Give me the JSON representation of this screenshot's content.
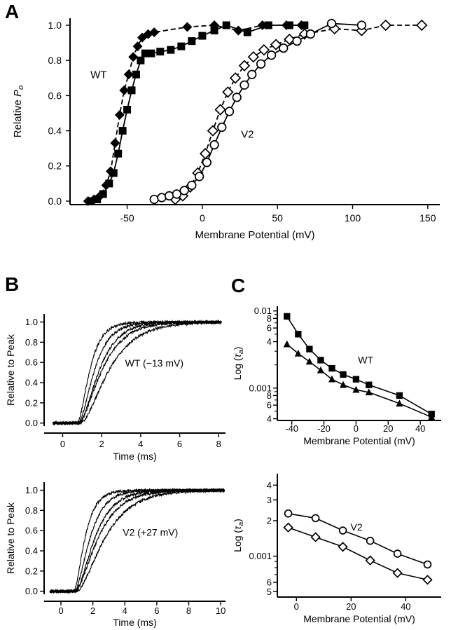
{
  "figure": {
    "background": "#ffffff",
    "ink": "#000000",
    "panels": [
      {
        "label": "A"
      },
      {
        "label": "B"
      },
      {
        "label": "C"
      }
    ]
  },
  "chart_data": [
    {
      "id": "A",
      "type": "scatter",
      "xlabel": "Membrane Potential (mV)",
      "ylabel_runs": [
        {
          "t": "Relative "
        },
        {
          "t": "P",
          "italic": true
        },
        {
          "t": "o",
          "italic": true,
          "sub": true
        }
      ],
      "xlim": [
        -88,
        158
      ],
      "ylim": [
        -0.02,
        1.04
      ],
      "yscale": "linear",
      "grid": false,
      "xticks": [
        {
          "v": -50,
          "label": "-50"
        },
        {
          "v": 0,
          "label": "0"
        },
        {
          "v": 50,
          "label": "50"
        },
        {
          "v": 100,
          "label": "100"
        },
        {
          "v": 150,
          "label": "150"
        }
      ],
      "yticks": [
        {
          "v": 0,
          "label": "0.0"
        },
        {
          "v": 0.2,
          "label": "0.2"
        },
        {
          "v": 0.4,
          "label": "0.4"
        },
        {
          "v": 0.6,
          "label": "0.6"
        },
        {
          "v": 0.8,
          "label": "0.8"
        },
        {
          "v": 1,
          "label": "1.0"
        }
      ],
      "annotations": [
        {
          "text": "WT",
          "x": -69,
          "y": 0.7
        },
        {
          "text": "V2",
          "x": 30,
          "y": 0.36
        }
      ],
      "series": [
        {
          "name": "WT filled diamonds",
          "marker": "filled-diamond",
          "line": "dashed",
          "points": [
            [
              -76,
              0.0
            ],
            [
              -72,
              0.01
            ],
            [
              -68,
              0.03
            ],
            [
              -64,
              0.09
            ],
            [
              -61,
              0.17
            ],
            [
              -58,
              0.33
            ],
            [
              -55,
              0.49
            ],
            [
              -52,
              0.63
            ],
            [
              -49,
              0.72
            ],
            [
              -46,
              0.82
            ],
            [
              -43,
              0.88
            ],
            [
              -40,
              0.93
            ],
            [
              -36,
              0.95
            ],
            [
              -32,
              0.96
            ],
            [
              -10,
              0.99
            ],
            [
              8,
              1.0
            ],
            [
              24,
              0.97
            ],
            [
              40,
              1.0
            ],
            [
              56,
              1.0
            ],
            [
              66,
              1.0
            ]
          ]
        },
        {
          "name": "WT filled squares",
          "marker": "filled-square",
          "line": "solid",
          "points": [
            [
              -74,
              0.0
            ],
            [
              -70,
              0.01
            ],
            [
              -66,
              0.04
            ],
            [
              -62,
              0.1
            ],
            [
              -59,
              0.16
            ],
            [
              -56,
              0.27
            ],
            [
              -53,
              0.4
            ],
            [
              -50,
              0.52
            ],
            [
              -47,
              0.63
            ],
            [
              -44,
              0.72
            ],
            [
              -41,
              0.8
            ],
            [
              -38,
              0.84
            ],
            [
              -34,
              0.84
            ],
            [
              -28,
              0.85
            ],
            [
              -21,
              0.86
            ],
            [
              -14,
              0.88
            ],
            [
              -7,
              0.91
            ],
            [
              0,
              0.94
            ],
            [
              8,
              0.97
            ],
            [
              16,
              1.0
            ],
            [
              30,
              0.96
            ],
            [
              44,
              1.0
            ],
            [
              58,
              1.0
            ],
            [
              68,
              1.0
            ]
          ]
        },
        {
          "name": "V2 open diamonds",
          "marker": "open-diamond",
          "line": "dashed",
          "points": [
            [
              -18,
              0.01
            ],
            [
              -13,
              0.03
            ],
            [
              -8,
              0.08
            ],
            [
              -3,
              0.16
            ],
            [
              2,
              0.27
            ],
            [
              7,
              0.4
            ],
            [
              12,
              0.52
            ],
            [
              17,
              0.62
            ],
            [
              22,
              0.7
            ],
            [
              28,
              0.77
            ],
            [
              34,
              0.82
            ],
            [
              41,
              0.86
            ],
            [
              49,
              0.89
            ],
            [
              58,
              0.92
            ],
            [
              68,
              0.95
            ],
            [
              88,
              0.98
            ],
            [
              106,
              0.97
            ],
            [
              122,
              1.0
            ],
            [
              146,
              1.0
            ]
          ]
        },
        {
          "name": "V2 open circles",
          "marker": "open-circle",
          "line": "solid",
          "points": [
            [
              -32,
              0.01
            ],
            [
              -27,
              0.02
            ],
            [
              -22,
              0.03
            ],
            [
              -17,
              0.04
            ],
            [
              -12,
              0.06
            ],
            [
              -7,
              0.09
            ],
            [
              -2,
              0.14
            ],
            [
              3,
              0.22
            ],
            [
              8,
              0.32
            ],
            [
              13,
              0.42
            ],
            [
              18,
              0.51
            ],
            [
              23,
              0.59
            ],
            [
              28,
              0.66
            ],
            [
              33,
              0.72
            ],
            [
              39,
              0.78
            ],
            [
              46,
              0.83
            ],
            [
              54,
              0.87
            ],
            [
              63,
              0.91
            ],
            [
              72,
              0.95
            ],
            [
              86,
              1.01
            ],
            [
              106,
              1.0
            ]
          ]
        }
      ]
    },
    {
      "id": "B1",
      "type": "line",
      "xlabel": "Time (ms)",
      "ylabel": "Relative to Peak",
      "xlim": [
        -0.95,
        8.35
      ],
      "ylim": [
        -0.03,
        1.08
      ],
      "yscale": "linear",
      "grid": false,
      "xticks": [
        {
          "v": 0,
          "label": "0"
        },
        {
          "v": 2,
          "label": "2"
        },
        {
          "v": 4,
          "label": "4"
        },
        {
          "v": 6,
          "label": "6"
        },
        {
          "v": 8,
          "label": "8"
        }
      ],
      "yticks": [
        {
          "v": 0,
          "label": "0.0"
        },
        {
          "v": 0.2,
          "label": "0.2"
        },
        {
          "v": 0.4,
          "label": "0.4"
        },
        {
          "v": 0.6,
          "label": "0.6"
        },
        {
          "v": 0.8,
          "label": "0.8"
        },
        {
          "v": 1,
          "label": "1.0"
        }
      ],
      "annotations": [
        {
          "text": "WT (−13 mV)",
          "x": 4.7,
          "y": 0.56
        }
      ],
      "traces": {
        "t_start": -0.5,
        "t_end": 8.15,
        "dt": 0.02,
        "noise": 0.013,
        "power": 2,
        "items": [
          {
            "t0": 0.75,
            "tau": 0.5,
            "seed": 1
          },
          {
            "t0": 0.8,
            "tau": 0.65,
            "seed": 2
          },
          {
            "t0": 0.85,
            "tau": 0.8,
            "seed": 3
          },
          {
            "t0": 0.8,
            "tau": 0.95,
            "seed": 4
          },
          {
            "t0": 0.9,
            "tau": 1.15,
            "seed": 5
          }
        ]
      }
    },
    {
      "id": "B2",
      "type": "line",
      "xlabel": "Time (ms)",
      "ylabel": "Relative to Peak",
      "xlim": [
        -1.05,
        10.3
      ],
      "ylim": [
        -0.03,
        1.08
      ],
      "yscale": "linear",
      "grid": false,
      "xticks": [
        {
          "v": 0,
          "label": "0"
        },
        {
          "v": 2,
          "label": "2"
        },
        {
          "v": 4,
          "label": "4"
        },
        {
          "v": 6,
          "label": "6"
        },
        {
          "v": 8,
          "label": "8"
        },
        {
          "v": 10,
          "label": "10"
        }
      ],
      "yticks": [
        {
          "v": 0,
          "label": "0.0"
        },
        {
          "v": 0.2,
          "label": "0.2"
        },
        {
          "v": 0.4,
          "label": "0.4"
        },
        {
          "v": 0.6,
          "label": "0.6"
        },
        {
          "v": 0.8,
          "label": "0.8"
        },
        {
          "v": 1,
          "label": "1.0"
        }
      ],
      "annotations": [
        {
          "text": "V2 (+27 mV)",
          "x": 5.6,
          "y": 0.55
        }
      ],
      "traces": {
        "t_start": -0.7,
        "t_end": 10.25,
        "dt": 0.02,
        "noise": 0.013,
        "power": 2,
        "items": [
          {
            "t0": 0.8,
            "tau": 0.55,
            "seed": 11
          },
          {
            "t0": 0.85,
            "tau": 0.75,
            "seed": 12
          },
          {
            "t0": 0.9,
            "tau": 0.95,
            "seed": 13
          },
          {
            "t0": 0.85,
            "tau": 1.15,
            "seed": 14
          },
          {
            "t0": 0.95,
            "tau": 1.4,
            "seed": 15
          }
        ]
      }
    },
    {
      "id": "C1",
      "type": "scatter",
      "xlabel": "Membrane Potential (mV)",
      "ylabel_runs": [
        {
          "t": "Log ("
        },
        {
          "t": "τ",
          "italic": true
        },
        {
          "t": "a",
          "italic": true,
          "sub": true
        },
        {
          "t": ")"
        }
      ],
      "xlim": [
        -49,
        53
      ],
      "ylim": [
        0.00038,
        0.0115
      ],
      "yscale": "log",
      "grid": false,
      "xticks": [
        {
          "v": -40,
          "label": "-40"
        },
        {
          "v": -20,
          "label": "-20"
        },
        {
          "v": 0,
          "label": "0"
        },
        {
          "v": 20,
          "label": "20"
        },
        {
          "v": 40,
          "label": "40"
        }
      ],
      "yticks": [
        {
          "v": 0.01,
          "label": "0.01"
        },
        {
          "v": 0.008,
          "label": "8"
        },
        {
          "v": 0.006,
          "label": "6"
        },
        {
          "v": 0.004,
          "label": "4"
        },
        {
          "v": 0.001,
          "label": "0.001"
        },
        {
          "v": 0.0008,
          "label": "8"
        },
        {
          "v": 0.0006,
          "label": "6"
        },
        {
          "v": 0.0004,
          "label": "4"
        }
      ],
      "yminor": [
        0.009,
        0.007,
        0.005,
        0.003,
        0.002,
        0.0009,
        0.0007,
        0.0005
      ],
      "annotations": [
        {
          "text": "WT",
          "x": 6,
          "y": 0.0021
        }
      ],
      "series": [
        {
          "name": "WT filled squares",
          "marker": "filled-square",
          "line": "solid",
          "points": [
            [
              -43,
              0.0085
            ],
            [
              -36,
              0.005
            ],
            [
              -29,
              0.0032
            ],
            [
              -22,
              0.0023
            ],
            [
              -15,
              0.0018
            ],
            [
              -8,
              0.0015
            ],
            [
              0,
              0.0013
            ],
            [
              8,
              0.0011
            ],
            [
              27,
              0.0008
            ],
            [
              47,
              0.00046
            ]
          ]
        },
        {
          "name": "WT filled triangles",
          "marker": "filled-triangle",
          "line": "solid",
          "points": [
            [
              -43,
              0.0037
            ],
            [
              -36,
              0.0028
            ],
            [
              -29,
              0.0022
            ],
            [
              -22,
              0.0017
            ],
            [
              -15,
              0.0013
            ],
            [
              -8,
              0.0011
            ],
            [
              0,
              0.00095
            ],
            [
              8,
              0.00088
            ],
            [
              27,
              0.00063
            ],
            [
              47,
              0.00042
            ]
          ]
        }
      ]
    },
    {
      "id": "C2",
      "type": "scatter",
      "xlabel": "Membrane Potential (mV)",
      "ylabel_runs": [
        {
          "t": "Log ("
        },
        {
          "t": "τ",
          "italic": true
        },
        {
          "t": "a",
          "italic": true,
          "sub": true
        },
        {
          "t": ")"
        }
      ],
      "xlim": [
        -7,
        53
      ],
      "ylim": [
        0.00045,
        0.005
      ],
      "yscale": "log",
      "grid": false,
      "xticks": [
        {
          "v": 0,
          "label": "0"
        },
        {
          "v": 20,
          "label": "20"
        },
        {
          "v": 40,
          "label": "40"
        }
      ],
      "yticks": [
        {
          "v": 0.004,
          "label": "4"
        },
        {
          "v": 0.003,
          "label": "3"
        },
        {
          "v": 0.002,
          "label": "2"
        },
        {
          "v": 0.001,
          "label": "0.001"
        },
        {
          "v": 0.0006,
          "label": "6"
        },
        {
          "v": 0.0005,
          "label": "5"
        }
      ],
      "yminor": [
        0.0009,
        0.0008,
        0.0007
      ],
      "annotations": [
        {
          "text": "V2",
          "x": 22,
          "y": 0.00165
        }
      ],
      "series": [
        {
          "name": "V2 open circles",
          "marker": "open-circle",
          "line": "solid",
          "points": [
            [
              -3,
              0.0023
            ],
            [
              7,
              0.0021
            ],
            [
              17,
              0.00165
            ],
            [
              27,
              0.00135
            ],
            [
              37,
              0.00105
            ],
            [
              48,
              0.00085
            ]
          ]
        },
        {
          "name": "V2 open diamonds",
          "marker": "open-diamond",
          "line": "solid",
          "points": [
            [
              -3,
              0.00175
            ],
            [
              7,
              0.00145
            ],
            [
              17,
              0.0012
            ],
            [
              27,
              0.00092
            ],
            [
              37,
              0.00072
            ],
            [
              48,
              0.00063
            ]
          ]
        }
      ]
    }
  ]
}
